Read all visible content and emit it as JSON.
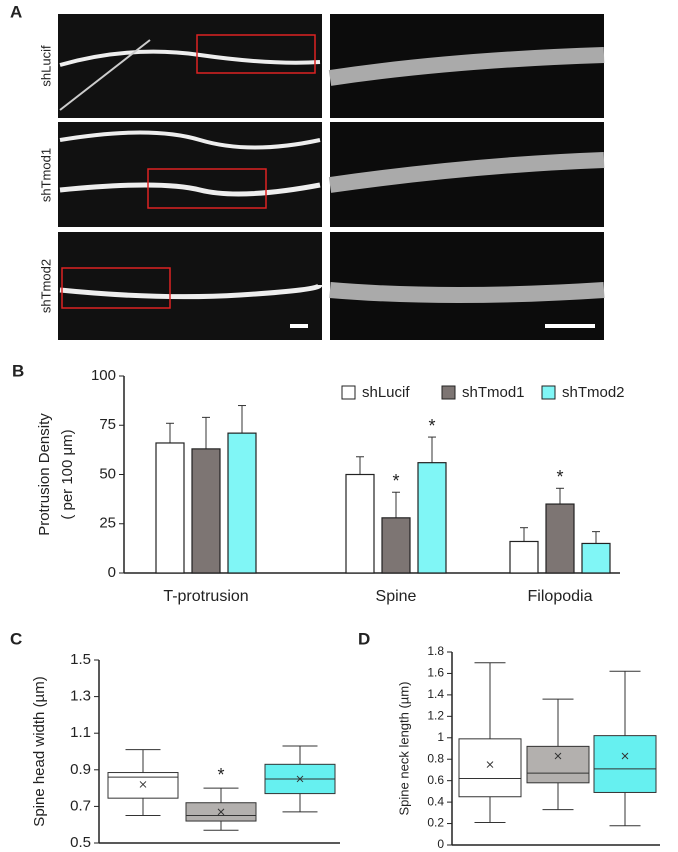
{
  "figure_a": {
    "label": "A",
    "rows": [
      "shLucif",
      "shTmod1",
      "shTmod2"
    ]
  },
  "chart_data": [
    {
      "type": "bar",
      "panel": "B",
      "ylabel": [
        "Protrusion Density",
        "( per 100 μm)"
      ],
      "categories": [
        "T-protrusion",
        "Spine",
        "Filopodia"
      ],
      "series": [
        {
          "name": "shLucif",
          "color": "#ffffff",
          "values": [
            66,
            50,
            16
          ],
          "errors": [
            10,
            9,
            7
          ],
          "markers": [
            null,
            null,
            null
          ]
        },
        {
          "name": "shTmod1",
          "color": "#7d7573",
          "values": [
            63,
            28,
            35
          ],
          "errors": [
            16,
            13,
            8
          ],
          "markers": [
            null,
            "*",
            "*"
          ]
        },
        {
          "name": "shTmod2",
          "color": "#80f6f6",
          "values": [
            71,
            56,
            15
          ],
          "errors": [
            14,
            13,
            6
          ],
          "markers": [
            null,
            "*",
            null
          ]
        }
      ],
      "ylim": [
        0,
        100
      ],
      "yticks": [
        0,
        25,
        50,
        75,
        100
      ],
      "legend": "top-right"
    },
    {
      "type": "box",
      "panel": "C",
      "ylabel": "Spine head width (µm)",
      "boxes": [
        {
          "color": "#ffffff",
          "whisker_low": 0.65,
          "q1": 0.745,
          "median": 0.86,
          "q3": 0.885,
          "whisker_high": 1.01,
          "mean": 0.82,
          "marker": null
        },
        {
          "color": "#b3b0ae",
          "whisker_low": 0.57,
          "q1": 0.62,
          "median": 0.65,
          "q3": 0.72,
          "whisker_high": 0.8,
          "mean": 0.67,
          "marker": "*"
        },
        {
          "color": "#66f0f0",
          "whisker_low": 0.67,
          "q1": 0.77,
          "median": 0.85,
          "q3": 0.93,
          "whisker_high": 1.03,
          "mean": 0.85,
          "marker": null
        }
      ],
      "ylim": [
        0.5,
        1.5
      ],
      "yticks": [
        0.5,
        0.7,
        0.9,
        1.1,
        1.3,
        1.5
      ]
    },
    {
      "type": "box",
      "panel": "D",
      "ylabel": "Spine neck length (µm)",
      "boxes": [
        {
          "color": "#ffffff",
          "whisker_low": 0.21,
          "q1": 0.45,
          "median": 0.62,
          "q3": 0.99,
          "whisker_high": 1.7,
          "mean": 0.75,
          "marker": null
        },
        {
          "color": "#b3b0ae",
          "whisker_low": 0.33,
          "q1": 0.58,
          "median": 0.67,
          "q3": 0.92,
          "whisker_high": 1.36,
          "mean": 0.83,
          "marker": null
        },
        {
          "color": "#66f0f0",
          "whisker_low": 0.18,
          "q1": 0.49,
          "median": 0.71,
          "q3": 1.02,
          "whisker_high": 1.62,
          "mean": 0.83,
          "marker": null
        }
      ],
      "ylim": [
        0,
        1.8
      ],
      "yticks": [
        0,
        0.2,
        0.4,
        0.6,
        0.8,
        1,
        1.2,
        1.4,
        1.6,
        1.8
      ]
    }
  ]
}
